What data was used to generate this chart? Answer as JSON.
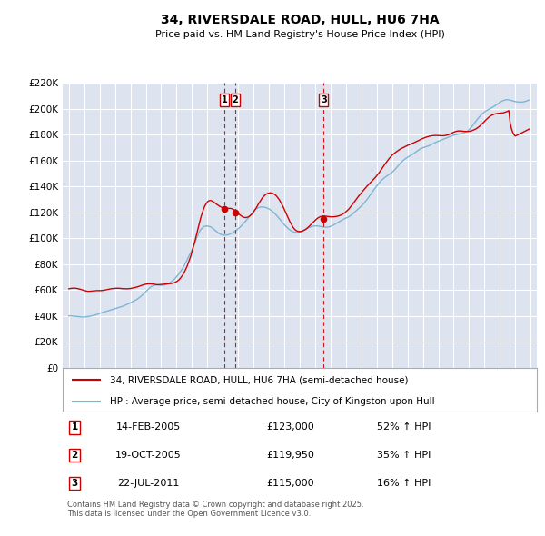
{
  "title": "34, RIVERSDALE ROAD, HULL, HU6 7HA",
  "subtitle": "Price paid vs. HM Land Registry's House Price Index (HPI)",
  "legend_line1": "34, RIVERSDALE ROAD, HULL, HU6 7HA (semi-detached house)",
  "legend_line2": "HPI: Average price, semi-detached house, City of Kingston upon Hull",
  "footer": "Contains HM Land Registry data © Crown copyright and database right 2025.\nThis data is licensed under the Open Government Licence v3.0.",
  "ylim": [
    0,
    220000
  ],
  "yticks": [
    0,
    20000,
    40000,
    60000,
    80000,
    100000,
    120000,
    140000,
    160000,
    180000,
    200000,
    220000
  ],
  "xlim_left": 1994.6,
  "xlim_right": 2025.4,
  "background_color": "#dde4f0",
  "red_color": "#cc0000",
  "blue_color": "#7fb4d4",
  "transactions": [
    {
      "num": 1,
      "date": "14-FEB-2005",
      "price": 123000,
      "pct": "52%",
      "dir": "↑",
      "year_x": 2005.12
    },
    {
      "num": 2,
      "date": "19-OCT-2005",
      "price": 119950,
      "pct": "35%",
      "dir": "↑",
      "year_x": 2005.8
    },
    {
      "num": 3,
      "date": "22-JUL-2011",
      "price": 115000,
      "pct": "16%",
      "dir": "↑",
      "year_x": 2011.55
    }
  ],
  "hpi_years": [
    1995.0,
    1995.08,
    1995.17,
    1995.25,
    1995.33,
    1995.42,
    1995.5,
    1995.58,
    1995.67,
    1995.75,
    1995.83,
    1995.92,
    1996.0,
    1996.08,
    1996.17,
    1996.25,
    1996.33,
    1996.42,
    1996.5,
    1996.58,
    1996.67,
    1996.75,
    1996.83,
    1996.92,
    1997.0,
    1997.08,
    1997.17,
    1997.25,
    1997.33,
    1997.42,
    1997.5,
    1997.58,
    1997.67,
    1997.75,
    1997.83,
    1997.92,
    1998.0,
    1998.08,
    1998.17,
    1998.25,
    1998.33,
    1998.42,
    1998.5,
    1998.58,
    1998.67,
    1998.75,
    1998.83,
    1998.92,
    1999.0,
    1999.08,
    1999.17,
    1999.25,
    1999.33,
    1999.42,
    1999.5,
    1999.58,
    1999.67,
    1999.75,
    1999.83,
    1999.92,
    2000.0,
    2000.08,
    2000.17,
    2000.25,
    2000.33,
    2000.42,
    2000.5,
    2000.58,
    2000.67,
    2000.75,
    2000.83,
    2000.92,
    2001.0,
    2001.08,
    2001.17,
    2001.25,
    2001.33,
    2001.42,
    2001.5,
    2001.58,
    2001.67,
    2001.75,
    2001.83,
    2001.92,
    2002.0,
    2002.08,
    2002.17,
    2002.25,
    2002.33,
    2002.42,
    2002.5,
    2002.58,
    2002.67,
    2002.75,
    2002.83,
    2002.92,
    2003.0,
    2003.08,
    2003.17,
    2003.25,
    2003.33,
    2003.42,
    2003.5,
    2003.58,
    2003.67,
    2003.75,
    2003.83,
    2003.92,
    2004.0,
    2004.08,
    2004.17,
    2004.25,
    2004.33,
    2004.42,
    2004.5,
    2004.58,
    2004.67,
    2004.75,
    2004.83,
    2004.92,
    2005.0,
    2005.08,
    2005.17,
    2005.25,
    2005.33,
    2005.42,
    2005.5,
    2005.58,
    2005.67,
    2005.75,
    2005.83,
    2005.92,
    2006.0,
    2006.08,
    2006.17,
    2006.25,
    2006.33,
    2006.42,
    2006.5,
    2006.58,
    2006.67,
    2006.75,
    2006.83,
    2006.92,
    2007.0,
    2007.08,
    2007.17,
    2007.25,
    2007.33,
    2007.42,
    2007.5,
    2007.58,
    2007.67,
    2007.75,
    2007.83,
    2007.92,
    2008.0,
    2008.08,
    2008.17,
    2008.25,
    2008.33,
    2008.42,
    2008.5,
    2008.58,
    2008.67,
    2008.75,
    2008.83,
    2008.92,
    2009.0,
    2009.08,
    2009.17,
    2009.25,
    2009.33,
    2009.42,
    2009.5,
    2009.58,
    2009.67,
    2009.75,
    2009.83,
    2009.92,
    2010.0,
    2010.08,
    2010.17,
    2010.25,
    2010.33,
    2010.42,
    2010.5,
    2010.58,
    2010.67,
    2010.75,
    2010.83,
    2010.92,
    2011.0,
    2011.08,
    2011.17,
    2011.25,
    2011.33,
    2011.42,
    2011.5,
    2011.58,
    2011.67,
    2011.75,
    2011.83,
    2011.92,
    2012.0,
    2012.08,
    2012.17,
    2012.25,
    2012.33,
    2012.42,
    2012.5,
    2012.58,
    2012.67,
    2012.75,
    2012.83,
    2012.92,
    2013.0,
    2013.08,
    2013.17,
    2013.25,
    2013.33,
    2013.42,
    2013.5,
    2013.58,
    2013.67,
    2013.75,
    2013.83,
    2013.92,
    2014.0,
    2014.08,
    2014.17,
    2014.25,
    2014.33,
    2014.42,
    2014.5,
    2014.58,
    2014.67,
    2014.75,
    2014.83,
    2014.92,
    2015.0,
    2015.08,
    2015.17,
    2015.25,
    2015.33,
    2015.42,
    2015.5,
    2015.58,
    2015.67,
    2015.75,
    2015.83,
    2015.92,
    2016.0,
    2016.08,
    2016.17,
    2016.25,
    2016.33,
    2016.42,
    2016.5,
    2016.58,
    2016.67,
    2016.75,
    2016.83,
    2016.92,
    2017.0,
    2017.08,
    2017.17,
    2017.25,
    2017.33,
    2017.42,
    2017.5,
    2017.58,
    2017.67,
    2017.75,
    2017.83,
    2017.92,
    2018.0,
    2018.08,
    2018.17,
    2018.25,
    2018.33,
    2018.42,
    2018.5,
    2018.58,
    2018.67,
    2018.75,
    2018.83,
    2018.92,
    2019.0,
    2019.08,
    2019.17,
    2019.25,
    2019.33,
    2019.42,
    2019.5,
    2019.58,
    2019.67,
    2019.75,
    2019.83,
    2019.92,
    2020.0,
    2020.08,
    2020.17,
    2020.25,
    2020.33,
    2020.42,
    2020.5,
    2020.58,
    2020.67,
    2020.75,
    2020.83,
    2020.92,
    2021.0,
    2021.08,
    2021.17,
    2021.25,
    2021.33,
    2021.42,
    2021.5,
    2021.58,
    2021.67,
    2021.75,
    2021.83,
    2021.92,
    2022.0,
    2022.08,
    2022.17,
    2022.25,
    2022.33,
    2022.42,
    2022.5,
    2022.58,
    2022.67,
    2022.75,
    2022.83,
    2022.92,
    2023.0,
    2023.08,
    2023.17,
    2023.25,
    2023.33,
    2023.42,
    2023.5,
    2023.58,
    2023.67,
    2023.75,
    2023.83,
    2023.92,
    2024.0,
    2024.08,
    2024.17,
    2024.25,
    2024.33,
    2024.42,
    2024.5,
    2024.58,
    2024.67,
    2024.75,
    2024.83,
    2024.92
  ],
  "hpi_vals": [
    40000,
    40100,
    40000,
    39900,
    39800,
    39700,
    39600,
    39500,
    39400,
    39300,
    39200,
    39100,
    39200,
    39300,
    39400,
    39500,
    39700,
    39900,
    40100,
    40300,
    40600,
    40900,
    41200,
    41500,
    42000,
    42300,
    42600,
    42900,
    43200,
    43500,
    43800,
    44100,
    44400,
    44700,
    45000,
    45300,
    45600,
    45900,
    46200,
    46500,
    46800,
    47100,
    47500,
    47900,
    48300,
    48700,
    49100,
    49600,
    50100,
    50600,
    51100,
    51600,
    52200,
    52800,
    53500,
    54200,
    55000,
    55800,
    56700,
    57700,
    58700,
    59700,
    60700,
    61700,
    62500,
    63000,
    63500,
    63800,
    64000,
    64100,
    64000,
    63800,
    63600,
    63700,
    63800,
    64000,
    64300,
    64700,
    65200,
    65800,
    66500,
    67300,
    68200,
    69200,
    70300,
    71500,
    72800,
    74200,
    75700,
    77300,
    79000,
    81000,
    83000,
    85000,
    87000,
    89000,
    91000,
    93500,
    96000,
    98500,
    101000,
    103500,
    105500,
    107000,
    108000,
    108800,
    109300,
    109500,
    109500,
    109300,
    109000,
    108500,
    107800,
    107000,
    106200,
    105400,
    104600,
    103800,
    103200,
    102800,
    102500,
    102400,
    102400,
    102500,
    102700,
    103000,
    103400,
    103900,
    104400,
    105000,
    105700,
    106500,
    107300,
    108200,
    109200,
    110200,
    111300,
    112400,
    113500,
    114700,
    115900,
    117200,
    118500,
    119800,
    121000,
    122000,
    122800,
    123400,
    123800,
    124100,
    124200,
    124200,
    124100,
    123900,
    123600,
    123200,
    122700,
    122100,
    121400,
    120600,
    119700,
    118700,
    117600,
    116500,
    115300,
    114100,
    112900,
    111700,
    110500,
    109400,
    108400,
    107500,
    106700,
    106000,
    105400,
    105000,
    104700,
    104600,
    104600,
    104700,
    104900,
    105300,
    105700,
    106200,
    106700,
    107200,
    107700,
    108200,
    108600,
    109000,
    109300,
    109500,
    109600,
    109600,
    109500,
    109400,
    109200,
    109000,
    108800,
    108700,
    108600,
    108600,
    108700,
    108900,
    109200,
    109600,
    110100,
    110600,
    111200,
    111800,
    112400,
    113000,
    113600,
    114200,
    114700,
    115200,
    115600,
    116000,
    116500,
    117100,
    117800,
    118600,
    119500,
    120400,
    121300,
    122200,
    123100,
    124000,
    124900,
    125900,
    127000,
    128200,
    129500,
    130800,
    132200,
    133600,
    135000,
    136400,
    137800,
    139200,
    140500,
    141800,
    143000,
    144100,
    145100,
    146000,
    146800,
    147500,
    148200,
    148900,
    149600,
    150300,
    151100,
    152000,
    153000,
    154100,
    155200,
    156400,
    157500,
    158600,
    159600,
    160500,
    161300,
    162000,
    162600,
    163200,
    163800,
    164400,
    165000,
    165700,
    166400,
    167100,
    167800,
    168500,
    169100,
    169600,
    170000,
    170300,
    170600,
    170900,
    171300,
    171700,
    172200,
    172700,
    173200,
    173700,
    174200,
    174600,
    175000,
    175400,
    175800,
    176200,
    176600,
    177000,
    177400,
    177800,
    178200,
    178600,
    179000,
    179400,
    179700,
    180000,
    180200,
    180400,
    180600,
    180700,
    180900,
    181200,
    181600,
    182000,
    182500,
    183100,
    184000,
    185000,
    186200,
    187500,
    188800,
    190100,
    191400,
    192700,
    193900,
    195000,
    196000,
    196900,
    197700,
    198400,
    199000,
    199600,
    200100,
    200600,
    201100,
    201700,
    202300,
    203000,
    203700,
    204400,
    205100,
    205700,
    206200,
    206600,
    206900,
    207100,
    207100,
    207000,
    206800,
    206500,
    206200,
    205900,
    205700,
    205500,
    205400,
    205300,
    205300,
    205300,
    205400,
    205600,
    205900,
    206200,
    206600,
    207000
  ],
  "prop_years": [
    1995.0,
    1995.08,
    1995.17,
    1995.25,
    1995.33,
    1995.42,
    1995.5,
    1995.58,
    1995.67,
    1995.75,
    1995.83,
    1995.92,
    1996.0,
    1996.08,
    1996.17,
    1996.25,
    1996.33,
    1996.42,
    1996.5,
    1996.58,
    1996.67,
    1996.75,
    1996.83,
    1996.92,
    1997.0,
    1997.08,
    1997.17,
    1997.25,
    1997.33,
    1997.42,
    1997.5,
    1997.58,
    1997.67,
    1997.75,
    1997.83,
    1997.92,
    1998.0,
    1998.08,
    1998.17,
    1998.25,
    1998.33,
    1998.42,
    1998.5,
    1998.58,
    1998.67,
    1998.75,
    1998.83,
    1998.92,
    1999.0,
    1999.08,
    1999.17,
    1999.25,
    1999.33,
    1999.42,
    1999.5,
    1999.58,
    1999.67,
    1999.75,
    1999.83,
    1999.92,
    2000.0,
    2000.08,
    2000.17,
    2000.25,
    2000.33,
    2000.42,
    2000.5,
    2000.58,
    2000.67,
    2000.75,
    2000.83,
    2000.92,
    2001.0,
    2001.08,
    2001.17,
    2001.25,
    2001.33,
    2001.42,
    2001.5,
    2001.58,
    2001.67,
    2001.75,
    2001.83,
    2001.92,
    2002.0,
    2002.08,
    2002.17,
    2002.25,
    2002.33,
    2002.42,
    2002.5,
    2002.58,
    2002.67,
    2002.75,
    2002.83,
    2002.92,
    2003.0,
    2003.08,
    2003.17,
    2003.25,
    2003.33,
    2003.42,
    2003.5,
    2003.58,
    2003.67,
    2003.75,
    2003.83,
    2003.92,
    2004.0,
    2004.08,
    2004.17,
    2004.25,
    2004.33,
    2004.42,
    2004.5,
    2004.58,
    2004.67,
    2004.75,
    2004.83,
    2004.92,
    2005.0,
    2005.08,
    2005.17,
    2005.25,
    2005.33,
    2005.42,
    2005.5,
    2005.58,
    2005.67,
    2005.75,
    2005.83,
    2005.92,
    2006.0,
    2006.08,
    2006.17,
    2006.25,
    2006.33,
    2006.42,
    2006.5,
    2006.58,
    2006.67,
    2006.75,
    2006.83,
    2006.92,
    2007.0,
    2007.08,
    2007.17,
    2007.25,
    2007.33,
    2007.42,
    2007.5,
    2007.58,
    2007.67,
    2007.75,
    2007.83,
    2007.92,
    2008.0,
    2008.08,
    2008.17,
    2008.25,
    2008.33,
    2008.42,
    2008.5,
    2008.58,
    2008.67,
    2008.75,
    2008.83,
    2008.92,
    2009.0,
    2009.08,
    2009.17,
    2009.25,
    2009.33,
    2009.42,
    2009.5,
    2009.58,
    2009.67,
    2009.75,
    2009.83,
    2009.92,
    2010.0,
    2010.08,
    2010.17,
    2010.25,
    2010.33,
    2010.42,
    2010.5,
    2010.58,
    2010.67,
    2010.75,
    2010.83,
    2010.92,
    2011.0,
    2011.08,
    2011.17,
    2011.25,
    2011.33,
    2011.42,
    2011.5,
    2011.58,
    2011.67,
    2011.75,
    2011.83,
    2011.92,
    2012.0,
    2012.08,
    2012.17,
    2012.25,
    2012.33,
    2012.42,
    2012.5,
    2012.58,
    2012.67,
    2012.75,
    2012.83,
    2012.92,
    2013.0,
    2013.08,
    2013.17,
    2013.25,
    2013.33,
    2013.42,
    2013.5,
    2013.58,
    2013.67,
    2013.75,
    2013.83,
    2013.92,
    2014.0,
    2014.08,
    2014.17,
    2014.25,
    2014.33,
    2014.42,
    2014.5,
    2014.58,
    2014.67,
    2014.75,
    2014.83,
    2014.92,
    2015.0,
    2015.08,
    2015.17,
    2015.25,
    2015.33,
    2015.42,
    2015.5,
    2015.58,
    2015.67,
    2015.75,
    2015.83,
    2015.92,
    2016.0,
    2016.08,
    2016.17,
    2016.25,
    2016.33,
    2016.42,
    2016.5,
    2016.58,
    2016.67,
    2016.75,
    2016.83,
    2016.92,
    2017.0,
    2017.08,
    2017.17,
    2017.25,
    2017.33,
    2017.42,
    2017.5,
    2017.58,
    2017.67,
    2017.75,
    2017.83,
    2017.92,
    2018.0,
    2018.08,
    2018.17,
    2018.25,
    2018.33,
    2018.42,
    2018.5,
    2018.58,
    2018.67,
    2018.75,
    2018.83,
    2018.92,
    2019.0,
    2019.08,
    2019.17,
    2019.25,
    2019.33,
    2019.42,
    2019.5,
    2019.58,
    2019.67,
    2019.75,
    2019.83,
    2019.92,
    2020.0,
    2020.08,
    2020.17,
    2020.25,
    2020.33,
    2020.42,
    2020.5,
    2020.58,
    2020.67,
    2020.75,
    2020.83,
    2020.92,
    2021.0,
    2021.08,
    2021.17,
    2021.25,
    2021.33,
    2021.42,
    2021.5,
    2021.58,
    2021.67,
    2021.75,
    2021.83,
    2021.92,
    2022.0,
    2022.08,
    2022.17,
    2022.25,
    2022.33,
    2022.42,
    2022.5,
    2022.58,
    2022.67,
    2022.75,
    2022.83,
    2022.92,
    2023.0,
    2023.08,
    2023.17,
    2023.25,
    2023.33,
    2023.42,
    2023.5,
    2023.58,
    2023.67,
    2023.75,
    2023.83,
    2023.92,
    2024.0,
    2024.08,
    2024.17,
    2024.25,
    2024.33,
    2024.42,
    2024.5,
    2024.58,
    2024.67,
    2024.75,
    2024.83,
    2024.92
  ],
  "prop_vals": [
    61000,
    61200,
    61300,
    61400,
    61500,
    61400,
    61300,
    61100,
    60900,
    60600,
    60300,
    60000,
    59700,
    59400,
    59200,
    59100,
    59100,
    59200,
    59300,
    59400,
    59500,
    59600,
    59600,
    59600,
    59600,
    59600,
    59700,
    59800,
    60000,
    60200,
    60400,
    60600,
    60800,
    61000,
    61100,
    61200,
    61300,
    61400,
    61400,
    61400,
    61300,
    61200,
    61100,
    61100,
    61000,
    61000,
    61000,
    61100,
    61200,
    61400,
    61600,
    61800,
    62000,
    62300,
    62600,
    62900,
    63300,
    63700,
    64000,
    64300,
    64500,
    64700,
    64800,
    64800,
    64800,
    64700,
    64600,
    64400,
    64200,
    64100,
    64100,
    64200,
    64300,
    64400,
    64500,
    64600,
    64700,
    64800,
    64900,
    65000,
    65100,
    65300,
    65600,
    66000,
    66500,
    67200,
    68100,
    69200,
    70500,
    72000,
    73800,
    75800,
    78000,
    80500,
    83200,
    86200,
    89500,
    93000,
    96800,
    100700,
    104700,
    108700,
    112600,
    116300,
    119700,
    122600,
    124900,
    126700,
    128100,
    128900,
    129200,
    129100,
    128600,
    128000,
    127300,
    126500,
    125800,
    125100,
    124500,
    124000,
    123600,
    123400,
    123200,
    123100,
    123100,
    123200,
    123100,
    122900,
    122500,
    121900,
    121200,
    120300,
    119300,
    118400,
    117600,
    116900,
    116400,
    116100,
    116000,
    116200,
    116600,
    117200,
    118000,
    119100,
    120400,
    121800,
    123400,
    125100,
    126800,
    128500,
    130000,
    131400,
    132600,
    133500,
    134200,
    134700,
    135000,
    135100,
    135000,
    134700,
    134200,
    133500,
    132500,
    131300,
    129900,
    128200,
    126400,
    124400,
    122300,
    120100,
    117900,
    115700,
    113600,
    111600,
    109800,
    108200,
    107000,
    106100,
    105600,
    105300,
    105200,
    105300,
    105600,
    106000,
    106500,
    107200,
    108000,
    108900,
    109900,
    110900,
    111900,
    112900,
    113900,
    114800,
    115600,
    116200,
    116700,
    117000,
    117200,
    117200,
    117100,
    117000,
    116800,
    116700,
    116600,
    116600,
    116600,
    116700,
    116800,
    117000,
    117200,
    117500,
    117900,
    118400,
    119000,
    119700,
    120500,
    121400,
    122400,
    123500,
    124800,
    126100,
    127400,
    128800,
    130100,
    131400,
    132700,
    134000,
    135200,
    136400,
    137600,
    138700,
    139800,
    140900,
    141900,
    143000,
    144000,
    145000,
    146100,
    147200,
    148400,
    149600,
    150900,
    152300,
    153700,
    155200,
    156600,
    158100,
    159500,
    160800,
    162000,
    163200,
    164200,
    165100,
    165900,
    166700,
    167400,
    168100,
    168700,
    169300,
    169800,
    170300,
    170800,
    171300,
    171800,
    172200,
    172600,
    173100,
    173500,
    173900,
    174400,
    174800,
    175300,
    175800,
    176300,
    176800,
    177200,
    177600,
    178000,
    178300,
    178600,
    178900,
    179100,
    179300,
    179400,
    179500,
    179500,
    179500,
    179400,
    179400,
    179300,
    179300,
    179300,
    179400,
    179600,
    179800,
    180100,
    180500,
    181000,
    181500,
    182000,
    182400,
    182700,
    182900,
    183000,
    183000,
    182900,
    182800,
    182700,
    182600,
    182600,
    182600,
    182700,
    182900,
    183100,
    183500,
    183900,
    184400,
    185000,
    185700,
    186500,
    187400,
    188300,
    189300,
    190300,
    191400,
    192400,
    193300,
    194100,
    194800,
    195300,
    195700,
    196100,
    196300,
    196500,
    196600,
    196700,
    196800,
    196900,
    197100,
    197400,
    197800,
    198200,
    198700,
    189000,
    185000,
    182000,
    180000,
    179000,
    179500,
    180000,
    180500,
    181000,
    181500,
    182000,
    182500,
    183000,
    183500,
    184000,
    184500
  ]
}
